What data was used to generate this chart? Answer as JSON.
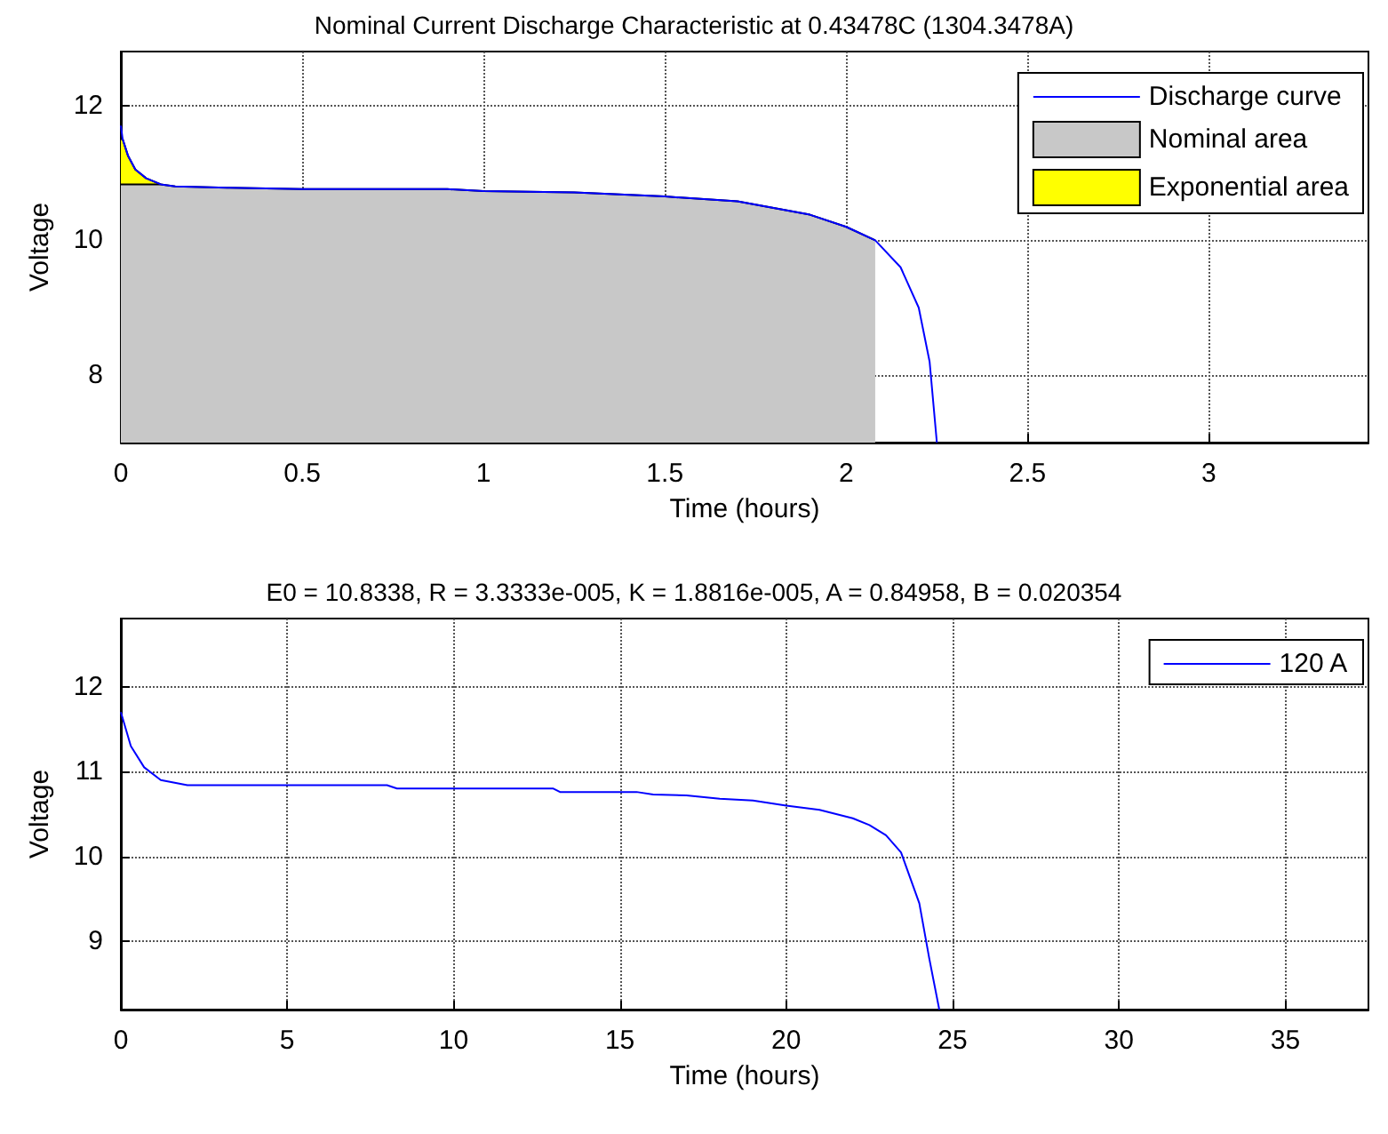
{
  "chart_data": [
    {
      "type": "line",
      "title": "Nominal Current Discharge Characteristic at 0.43478C (1304.3478A)",
      "xlabel": "Time (hours)",
      "ylabel": "Voltage",
      "xlim": [
        0,
        3.44
      ],
      "xticks": [
        0,
        0.5,
        1,
        1.5,
        2,
        2.5,
        3
      ],
      "ylim": [
        7,
        12.8
      ],
      "yticks": [
        8,
        10,
        12
      ],
      "grid": true,
      "legend": "top right",
      "marker": "none",
      "line_style": "solid",
      "series": [
        {
          "name": "Discharge curve",
          "color": "#0000ff",
          "x": [
            0,
            0.005,
            0.02,
            0.04,
            0.07,
            0.11,
            0.15,
            0.3,
            0.5,
            0.9,
            1.0,
            1.25,
            1.5,
            1.7,
            1.8,
            1.9,
            2.0,
            2.08,
            2.15,
            2.2,
            2.23,
            2.25
          ],
          "values": [
            11.7,
            11.5,
            11.25,
            11.05,
            10.92,
            10.83,
            10.8,
            10.78,
            10.76,
            10.76,
            10.73,
            10.71,
            10.65,
            10.58,
            10.48,
            10.38,
            10.2,
            10.0,
            9.6,
            9.0,
            8.2,
            7.0
          ]
        },
        {
          "name": "Nominal area",
          "type": "area",
          "color": "#c8c8c8",
          "x": [
            0,
            0.11,
            0.15,
            0.3,
            0.5,
            0.9,
            1.0,
            1.25,
            1.5,
            1.7,
            1.8,
            1.9,
            2.0,
            2.08
          ],
          "values": [
            10.83,
            10.83,
            10.8,
            10.78,
            10.76,
            10.76,
            10.73,
            10.71,
            10.65,
            10.58,
            10.48,
            10.38,
            10.2,
            10.0
          ]
        },
        {
          "name": "Exponential area",
          "type": "area",
          "color": "#ffff00",
          "x": [
            0,
            0.005,
            0.02,
            0.04,
            0.07,
            0.11
          ],
          "values": [
            11.5,
            11.5,
            11.25,
            11.05,
            10.92,
            10.83
          ]
        }
      ]
    },
    {
      "type": "line",
      "title": "E0 = 10.8338, R = 3.3333e-005, K = 1.8816e-005, A = 0.84958, B = 0.020354",
      "xlabel": "Time (hours)",
      "ylabel": "Voltage",
      "xlim": [
        0,
        37.5
      ],
      "xticks": [
        0,
        5,
        10,
        15,
        20,
        25,
        30,
        35
      ],
      "ylim": [
        8.2,
        12.8
      ],
      "yticks": [
        9,
        10,
        11,
        12
      ],
      "grid": true,
      "legend": "top right",
      "marker": "none",
      "line_style": "solid",
      "series": [
        {
          "name": "120 A",
          "color": "#0000ff",
          "x": [
            0,
            0.3,
            0.7,
            1.2,
            2,
            8,
            8.3,
            13,
            13.2,
            15.5,
            16,
            17,
            18,
            19,
            20,
            21,
            22,
            22.5,
            23,
            23.45,
            24,
            24.3,
            24.6
          ],
          "values": [
            11.7,
            11.3,
            11.05,
            10.9,
            10.84,
            10.84,
            10.8,
            10.8,
            10.76,
            10.76,
            10.73,
            10.72,
            10.68,
            10.66,
            10.6,
            10.55,
            10.45,
            10.37,
            10.25,
            10.05,
            9.45,
            8.8,
            8.2
          ]
        }
      ]
    }
  ]
}
